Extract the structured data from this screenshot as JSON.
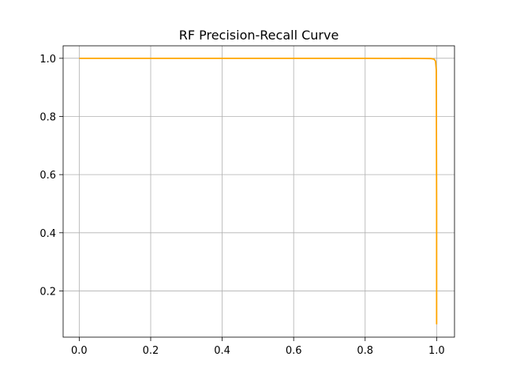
{
  "chart_data": {
    "type": "line",
    "title": "RF Precision-Recall Curve",
    "xlabel": "",
    "ylabel": "",
    "xlim": [
      -0.045,
      1.05
    ],
    "ylim": [
      0.041,
      1.043
    ],
    "grid": true,
    "x_ticks": [
      0.0,
      0.2,
      0.4,
      0.6,
      0.8,
      1.0
    ],
    "x_tick_labels": [
      "0.0",
      "0.2",
      "0.4",
      "0.6",
      "0.8",
      "1.0"
    ],
    "y_ticks": [
      0.2,
      0.4,
      0.6,
      0.8,
      1.0
    ],
    "y_tick_labels": [
      "0.2",
      "0.4",
      "0.6",
      "0.8",
      "1.0"
    ],
    "series": [
      {
        "color": "#ffa500",
        "x": [
          0.0,
          0.2,
          0.4,
          0.6,
          0.8,
          0.95,
          0.985,
          0.993,
          0.997,
          0.999,
          1.0,
          1.0
        ],
        "y": [
          1.0,
          1.0,
          1.0,
          1.0,
          1.0,
          0.9995,
          0.999,
          0.997,
          0.99,
          0.96,
          0.5,
          0.085
        ]
      }
    ]
  }
}
